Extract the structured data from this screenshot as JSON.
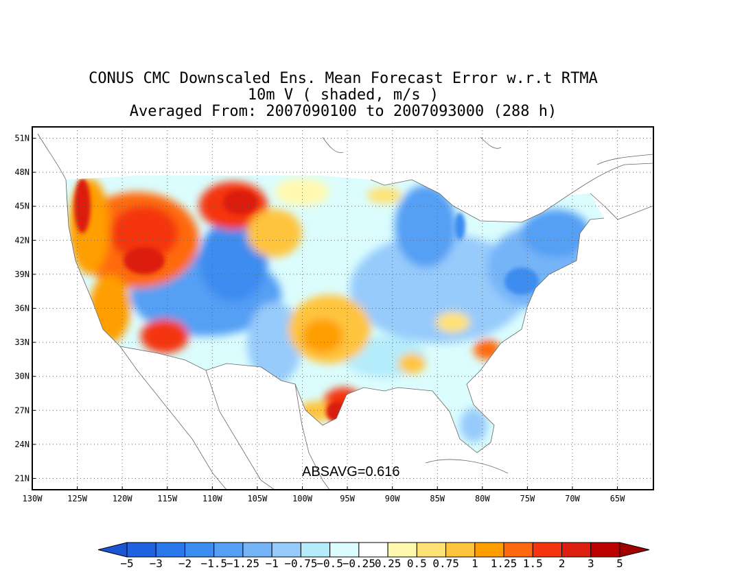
{
  "title": {
    "line1": "CONUS CMC Downscaled Ens. Mean Forecast Error w.r.t RTMA",
    "line2": "10m V ( shaded, m/s )",
    "line3": "Averaged From: 2007090100 to 2007093000 (288 h)"
  },
  "map": {
    "lon_ticks": [
      "130W",
      "125W",
      "120W",
      "115W",
      "110W",
      "105W",
      "100W",
      "95W",
      "90W",
      "85W",
      "80W",
      "75W",
      "70W",
      "65W"
    ],
    "lat_ticks": [
      "51N",
      "48N",
      "45N",
      "42N",
      "39N",
      "36N",
      "33N",
      "30N",
      "27N",
      "24N",
      "21N"
    ],
    "lon_range": [
      -130,
      -61
    ],
    "lat_range": [
      20,
      52
    ],
    "grid": "dotted",
    "stat_label": "ABSAVG=0.616",
    "regions": [
      {
        "name": "pacific-northwest",
        "value": 2
      },
      {
        "name": "northern-rockies",
        "value": 2
      },
      {
        "name": "great-basin",
        "value": -1.5
      },
      {
        "name": "southwest",
        "value": -1.25
      },
      {
        "name": "southern-plains",
        "value": 0.75
      },
      {
        "name": "south-texas-coast",
        "value": 3
      },
      {
        "name": "great-lakes",
        "value": -1.25
      },
      {
        "name": "northeast",
        "value": -1.5
      },
      {
        "name": "carolina-coast",
        "value": 2
      }
    ]
  },
  "colorbar": {
    "labels": [
      "−5",
      "−3",
      "−2",
      "−1.5",
      "−1.25",
      "−1",
      "−0.75",
      "−0.5",
      "−0.25",
      "0.25",
      "0.5",
      "0.75",
      "1",
      "1.25",
      "1.5",
      "2",
      "3",
      "5"
    ],
    "colors": [
      "#1f63e0",
      "#2b77ec",
      "#3d8cf0",
      "#559ff4",
      "#76b4f8",
      "#97cbfb",
      "#b4ecfb",
      "#dbfdfd",
      "#ffffff",
      "#fff9b0",
      "#ffe275",
      "#ffc43e",
      "#ff9e00",
      "#ff6a10",
      "#f43510",
      "#dc1f10",
      "#bb0000"
    ],
    "under_color": "#1a55d4",
    "over_color": "#a00000"
  }
}
